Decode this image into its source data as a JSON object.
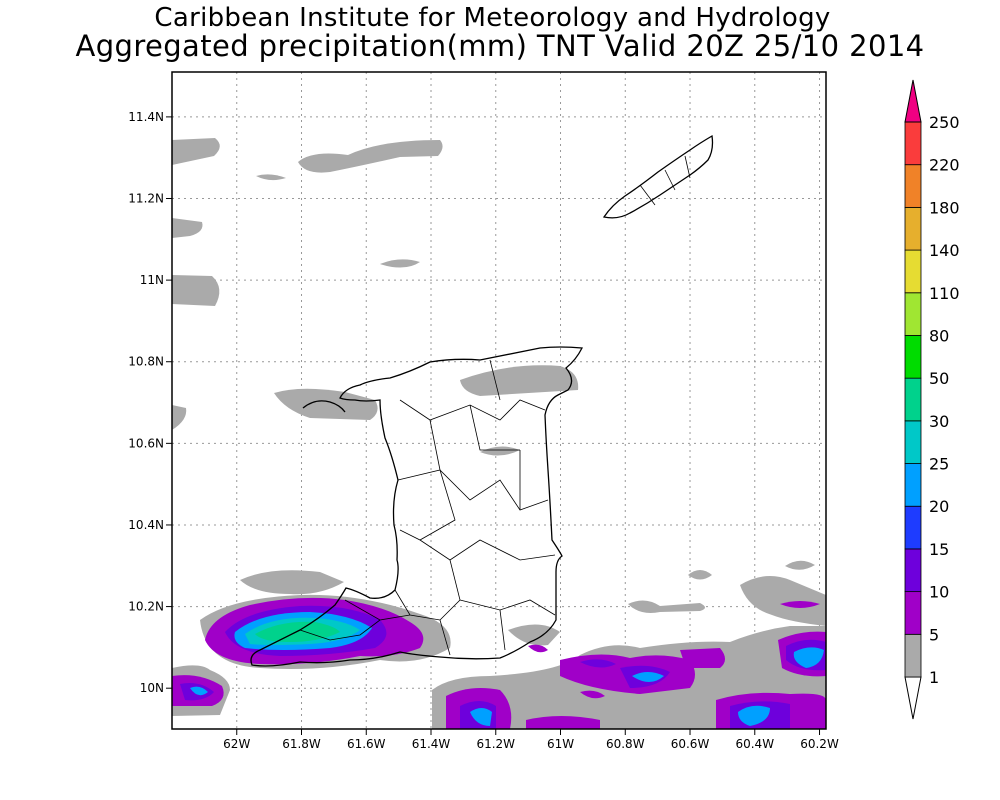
{
  "header": {
    "institute": "Caribbean Institute for Meteorology and Hydrology",
    "subtitle": "Aggregated precipitation(mm) TNT Valid 20Z 25/10 2014"
  },
  "chart_data": {
    "type": "heatmap",
    "variable": "Aggregated precipitation",
    "units": "mm",
    "x_axis": {
      "range": [
        -62.2,
        -60.18
      ],
      "tick_values": [
        -62.0,
        -61.8,
        -61.6,
        -61.4,
        -61.2,
        -61.0,
        -60.8,
        -60.6,
        -60.4,
        -60.2
      ],
      "tick_labels": [
        "62W",
        "61.8W",
        "61.6W",
        "61.4W",
        "61.2W",
        "61W",
        "60.8W",
        "60.6W",
        "60.4W",
        "60.2W"
      ]
    },
    "y_axis": {
      "range": [
        9.9,
        11.51
      ],
      "tick_values": [
        10.0,
        10.2,
        10.4,
        10.6,
        10.8,
        11.0,
        11.2,
        11.4
      ],
      "tick_labels": [
        "10N",
        "10.2N",
        "10.4N",
        "10.6N",
        "10.8N",
        "11N",
        "11.2N",
        "11.4N"
      ]
    },
    "grid": true,
    "legend_placement": "right",
    "colorbar": {
      "levels": [
        "1",
        "5",
        "10",
        "15",
        "20",
        "25",
        "30",
        "50",
        "80",
        "110",
        "140",
        "180",
        "220",
        "250"
      ],
      "colors": [
        "#ffffff",
        "#aaaaaa",
        "#a000c8",
        "#6e00dc",
        "#1e3cff",
        "#00a0ff",
        "#00c8c8",
        "#00d28c",
        "#00dc00",
        "#a0e632",
        "#e6dc32",
        "#e6af2d",
        "#f08228",
        "#fa3c3c",
        "#f00082"
      ]
    },
    "precip_areas": [
      {
        "level": "1-5",
        "color": "#aaaaaa",
        "region": "offshore NW of Trinidad, 11.3-11.4N"
      },
      {
        "level": "1-5",
        "color": "#aaaaaa",
        "region": "north coast and Gulf of Paria, 10.7-10.8N"
      },
      {
        "level": "1-5",
        "color": "#aaaaaa",
        "region": "southern Trinidad and Columbus Channel, 9.9-10.25N"
      },
      {
        "level": "5-10",
        "color": "#a000c8",
        "region": "southwest peninsula, 10.05-10.2N"
      },
      {
        "level": "25-50",
        "color": "#00d28c",
        "region": "southwest peninsula peak near 61.8W 10.12N"
      },
      {
        "level": "10-20",
        "color": "#1e3cff",
        "region": "east of 60.5W offshore south-east"
      }
    ]
  }
}
